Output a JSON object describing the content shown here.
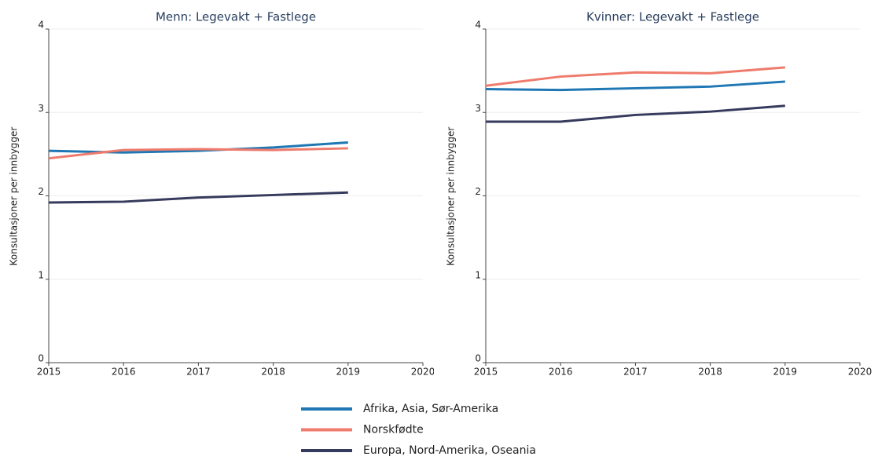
{
  "chart_data": [
    {
      "type": "line",
      "title": "Menn: Legevakt + Fastlege",
      "y_label": "Konsultasjoner per innbygger",
      "x": [
        2015,
        2016,
        2017,
        2018,
        2019
      ],
      "series": [
        {
          "name": "Afrika, Asia, Sør-Amerika",
          "color": "#1f77b4",
          "values": [
            2.54,
            2.52,
            2.54,
            2.58,
            2.64
          ]
        },
        {
          "name": "Norskfødte",
          "color": "#ef7b6c",
          "values": [
            2.45,
            2.55,
            2.56,
            2.55,
            2.57
          ]
        },
        {
          "name": "Europa, Nord-Amerika, Oseania",
          "color": "#363a5c",
          "values": [
            1.92,
            1.93,
            1.98,
            2.01,
            2.04
          ]
        }
      ],
      "xlim": [
        2015,
        2020
      ],
      "xticks": [
        2015,
        2016,
        2017,
        2018,
        2019,
        2020
      ],
      "ylim": [
        0,
        4
      ],
      "yticks": [
        0,
        1,
        2,
        3,
        4
      ],
      "grid": true
    },
    {
      "type": "line",
      "title": "Kvinner: Legevakt + Fastlege",
      "y_label": "Konsultasjoner per innbygger",
      "x": [
        2015,
        2016,
        2017,
        2018,
        2019
      ],
      "series": [
        {
          "name": "Afrika, Asia, Sør-Amerika",
          "color": "#1f77b4",
          "values": [
            3.28,
            3.27,
            3.29,
            3.31,
            3.37
          ]
        },
        {
          "name": "Norskfødte",
          "color": "#ef7b6c",
          "values": [
            3.32,
            3.43,
            3.48,
            3.47,
            3.54
          ]
        },
        {
          "name": "Europa, Nord-Amerika, Oseania",
          "color": "#363a5c",
          "values": [
            2.89,
            2.89,
            2.97,
            3.01,
            3.08
          ]
        }
      ],
      "xlim": [
        2015,
        2020
      ],
      "xticks": [
        2015,
        2016,
        2017,
        2018,
        2019,
        2020
      ],
      "ylim": [
        0,
        4
      ],
      "yticks": [
        0,
        1,
        2,
        3,
        4
      ],
      "grid": true
    }
  ]
}
